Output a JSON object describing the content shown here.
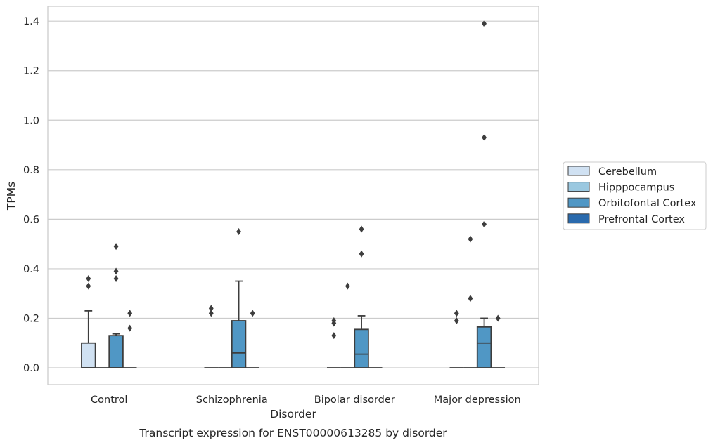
{
  "chart_data": {
    "type": "box",
    "caption": "Transcript expression for ENST00000613285 by disorder",
    "xlabel": "Disorder",
    "ylabel": "TPMs",
    "ylim": [
      -0.068,
      1.46
    ],
    "yticks": [
      0.0,
      0.2,
      0.4,
      0.6,
      0.8,
      1.0,
      1.2,
      1.4
    ],
    "ytick_labels": [
      "0.0",
      "0.2",
      "0.4",
      "0.6",
      "0.8",
      "1.0",
      "1.2",
      "1.4"
    ],
    "grid": true,
    "legend_position": "right",
    "categories": [
      "Control",
      "Schizophrenia",
      "Bipolar disorder",
      "Major depression"
    ],
    "series": [
      {
        "name": "Cerebellum",
        "color": "#d0e1f2",
        "boxes": [
          {
            "q1": 0,
            "median": 0,
            "q3": 0.1,
            "whisker_low": 0,
            "whisker_high": 0.23,
            "fliers": [
              0.33,
              0.36
            ]
          },
          {
            "q1": 0,
            "median": 0,
            "q3": 0,
            "whisker_low": 0,
            "whisker_high": 0,
            "fliers": [
              0.22,
              0.24
            ]
          },
          {
            "q1": 0,
            "median": 0,
            "q3": 0,
            "whisker_low": 0,
            "whisker_high": 0,
            "fliers": [
              0.13,
              0.18,
              0.19
            ]
          },
          {
            "q1": 0,
            "median": 0,
            "q3": 0,
            "whisker_low": 0,
            "whisker_high": 0,
            "fliers": [
              0.19,
              0.22
            ]
          }
        ]
      },
      {
        "name": "Hipppocampus",
        "color": "#9ac8e0",
        "boxes": [
          {
            "q1": 0,
            "median": 0,
            "q3": 0,
            "whisker_low": 0,
            "whisker_high": 0,
            "fliers": []
          },
          {
            "q1": 0,
            "median": 0,
            "q3": 0,
            "whisker_low": 0,
            "whisker_high": 0,
            "fliers": []
          },
          {
            "q1": 0,
            "median": 0,
            "q3": 0,
            "whisker_low": 0,
            "whisker_high": 0,
            "fliers": [
              0.33
            ]
          },
          {
            "q1": 0,
            "median": 0,
            "q3": 0,
            "whisker_low": 0,
            "whisker_high": 0,
            "fliers": [
              0.28,
              0.52
            ]
          }
        ]
      },
      {
        "name": "Orbitofontal Cortex",
        "color": "#5097c5",
        "boxes": [
          {
            "q1": 0,
            "median": 0,
            "q3": 0.13,
            "whisker_low": 0,
            "whisker_high": 0.137,
            "fliers": [
              0.36,
              0.39,
              0.49
            ]
          },
          {
            "q1": 0,
            "median": 0.06,
            "q3": 0.19,
            "whisker_low": 0,
            "whisker_high": 0.35,
            "fliers": [
              0.55
            ]
          },
          {
            "q1": 0,
            "median": 0.055,
            "q3": 0.155,
            "whisker_low": 0,
            "whisker_high": 0.21,
            "fliers": [
              0.46,
              0.56
            ]
          },
          {
            "q1": 0,
            "median": 0.1,
            "q3": 0.165,
            "whisker_low": 0,
            "whisker_high": 0.2,
            "fliers": [
              0.58,
              0.93,
              1.39
            ]
          }
        ]
      },
      {
        "name": "Prefrontal Cortex",
        "color": "#2a6aad",
        "boxes": [
          {
            "q1": 0,
            "median": 0,
            "q3": 0,
            "whisker_low": 0,
            "whisker_high": 0,
            "fliers": [
              0.16,
              0.22
            ]
          },
          {
            "q1": 0,
            "median": 0,
            "q3": 0,
            "whisker_low": 0,
            "whisker_high": 0,
            "fliers": [
              0.22
            ]
          },
          {
            "q1": 0,
            "median": 0,
            "q3": 0,
            "whisker_low": 0,
            "whisker_high": 0,
            "fliers": []
          },
          {
            "q1": 0,
            "median": 0,
            "q3": 0,
            "whisker_low": 0,
            "whisker_high": 0,
            "fliers": [
              0.2
            ]
          }
        ]
      }
    ]
  }
}
